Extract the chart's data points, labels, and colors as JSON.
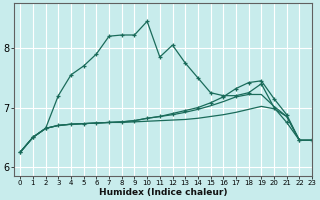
{
  "x": [
    0,
    1,
    2,
    3,
    4,
    5,
    6,
    7,
    8,
    9,
    10,
    11,
    12,
    13,
    14,
    15,
    16,
    17,
    18,
    19,
    20,
    21,
    22,
    23
  ],
  "line1": [
    6.25,
    6.5,
    6.65,
    7.2,
    7.55,
    7.7,
    7.9,
    8.2,
    8.22,
    8.22,
    8.45,
    7.85,
    8.05,
    7.75,
    7.5,
    7.25,
    7.2,
    7.2,
    7.25,
    7.4,
    7.0,
    6.75,
    6.45,
    6.45
  ],
  "line2": [
    6.25,
    6.5,
    6.65,
    6.7,
    6.72,
    6.73,
    6.74,
    6.75,
    6.75,
    6.76,
    6.77,
    6.78,
    6.79,
    6.8,
    6.82,
    6.85,
    6.88,
    6.92,
    6.97,
    7.02,
    6.98,
    6.85,
    6.45,
    6.45
  ],
  "line3": [
    6.25,
    6.5,
    6.65,
    6.7,
    6.72,
    6.73,
    6.74,
    6.75,
    6.76,
    6.78,
    6.82,
    6.85,
    6.88,
    6.92,
    6.97,
    7.03,
    7.1,
    7.18,
    7.22,
    7.22,
    7.02,
    6.85,
    6.45,
    6.45
  ],
  "line4": [
    6.25,
    6.5,
    6.65,
    6.7,
    6.72,
    6.73,
    6.74,
    6.75,
    6.76,
    6.78,
    6.82,
    6.85,
    6.9,
    6.95,
    7.0,
    7.08,
    7.18,
    7.32,
    7.42,
    7.45,
    7.15,
    6.88,
    6.45,
    6.45
  ],
  "color": "#1a6b5a",
  "bg_color": "#c8ecec",
  "grid_color": "#ffffff",
  "xlabel": "Humidex (Indice chaleur)",
  "ylim": [
    5.85,
    8.75
  ],
  "xlim": [
    -0.5,
    23
  ],
  "yticks": [
    6,
    7,
    8
  ],
  "xticks": [
    0,
    1,
    2,
    3,
    4,
    5,
    6,
    7,
    8,
    9,
    10,
    11,
    12,
    13,
    14,
    15,
    16,
    17,
    18,
    19,
    20,
    21,
    22,
    23
  ]
}
